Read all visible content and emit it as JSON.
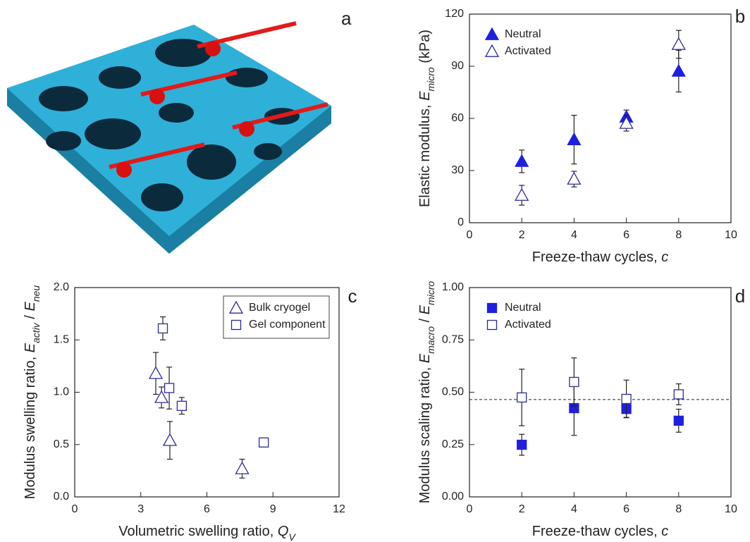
{
  "panel_a": {
    "label": "a"
  },
  "chart_data": [
    {
      "type": "scatter",
      "label": "b",
      "xlabel": [
        {
          "text": "Freeze-thaw cycles, "
        },
        {
          "text": "c",
          "style": "italic"
        }
      ],
      "ylabel": [
        {
          "text": "Elastic modulus, "
        },
        {
          "text": "E",
          "style": "italic"
        },
        {
          "text": "micro",
          "style": "sub"
        },
        {
          "text": " (kPa)"
        }
      ],
      "xlim": [
        0,
        10
      ],
      "xticks": [
        0,
        2,
        4,
        6,
        8,
        10
      ],
      "ylim": [
        0,
        120
      ],
      "yticks": [
        0,
        30,
        60,
        90,
        120
      ],
      "legend": "upper left",
      "legend_frame": false,
      "series": [
        {
          "name": "Neutral",
          "marker": "triangle",
          "filled": true,
          "color": "#1f1fe0",
          "x": [
            2,
            4,
            6,
            8
          ],
          "values": [
            35.3,
            47.8,
            60.8,
            87.2
          ],
          "errors": [
            6.5,
            14,
            4,
            12
          ]
        },
        {
          "name": "Activated",
          "marker": "triangle",
          "filled": false,
          "color": "#2b2b9b",
          "x": [
            2,
            4,
            6,
            8
          ],
          "values": [
            15.8,
            25.1,
            57.2,
            102.6
          ],
          "errors": [
            5.7,
            4.5,
            4.5,
            8
          ]
        }
      ]
    },
    {
      "type": "scatter",
      "label": "c",
      "xlabel": [
        {
          "text": "Volumetric swelling ratio, "
        },
        {
          "text": "Q",
          "style": "italic"
        },
        {
          "text": "V",
          "style": "sub"
        }
      ],
      "ylabel": [
        {
          "text": "Modulus swelling ratio, "
        },
        {
          "text": "E",
          "style": "italic"
        },
        {
          "text": "activ",
          "style": "sub"
        },
        {
          "text": " / "
        },
        {
          "text": "E",
          "style": "italic"
        },
        {
          "text": "neu",
          "style": "sub"
        }
      ],
      "xlim": [
        0,
        12
      ],
      "xticks": [
        0,
        3,
        6,
        9,
        12
      ],
      "ylim": [
        0,
        2
      ],
      "yticks": [
        {
          "value": 0,
          "label": "0.0"
        },
        0.5,
        {
          "value": 1,
          "label": "1.0"
        },
        1.5,
        {
          "value": 2,
          "label": "2.0"
        }
      ],
      "legend": "upper right",
      "legend_frame": true,
      "series": [
        {
          "name": "Bulk cryogel",
          "marker": "triangle",
          "filled": false,
          "color": "#2b2b9b",
          "x": [
            3.68,
            3.94,
            4.32,
            7.6
          ],
          "values": [
            1.18,
            0.95,
            0.54,
            0.27
          ],
          "errors": [
            0.2,
            0.1,
            0.18,
            0.09
          ]
        },
        {
          "name": "Gel component",
          "marker": "square",
          "filled": false,
          "color": "#2b2b9b",
          "x": [
            4.0,
            4.29,
            4.86,
            8.58
          ],
          "values": [
            1.61,
            1.04,
            0.87,
            0.52
          ],
          "errors": [
            0.11,
            0.2,
            0.08,
            0.02
          ]
        }
      ]
    },
    {
      "type": "scatter",
      "label": "d",
      "xlabel": [
        {
          "text": "Freeze-thaw cycles, "
        },
        {
          "text": "c",
          "style": "italic"
        }
      ],
      "ylabel": [
        {
          "text": "Modulus scaling ratio, "
        },
        {
          "text": "E",
          "style": "italic"
        },
        {
          "text": "macro",
          "style": "sub"
        },
        {
          "text": " / "
        },
        {
          "text": "E",
          "style": "italic"
        },
        {
          "text": "micro",
          "style": "sub"
        }
      ],
      "xlim": [
        0,
        10
      ],
      "xticks": [
        0,
        2,
        4,
        6,
        8,
        10
      ],
      "ylim": [
        0,
        1
      ],
      "yticks": [
        {
          "value": 0,
          "label": "0.00"
        },
        {
          "value": 0.25,
          "label": "0.25"
        },
        {
          "value": 0.5,
          "label": "0.50"
        },
        {
          "value": 0.75,
          "label": "0.75"
        },
        {
          "value": 1,
          "label": "1.00"
        }
      ],
      "legend": "upper left",
      "legend_frame": false,
      "hline": 0.465,
      "series": [
        {
          "name": "Neutral",
          "marker": "square",
          "filled": true,
          "color": "#1f1fe0",
          "x": [
            2,
            4,
            6,
            8
          ],
          "values": [
            0.249,
            0.424,
            0.42,
            0.364
          ],
          "errors": [
            0.05,
            0.13,
            0.04,
            0.055
          ]
        },
        {
          "name": "Activated",
          "marker": "square",
          "filled": false,
          "color": "#2b2b9b",
          "x": [
            2,
            4,
            6,
            8
          ],
          "values": [
            0.475,
            0.549,
            0.468,
            0.49
          ],
          "errors": [
            0.135,
            0.115,
            0.09,
            0.05
          ]
        }
      ]
    }
  ]
}
